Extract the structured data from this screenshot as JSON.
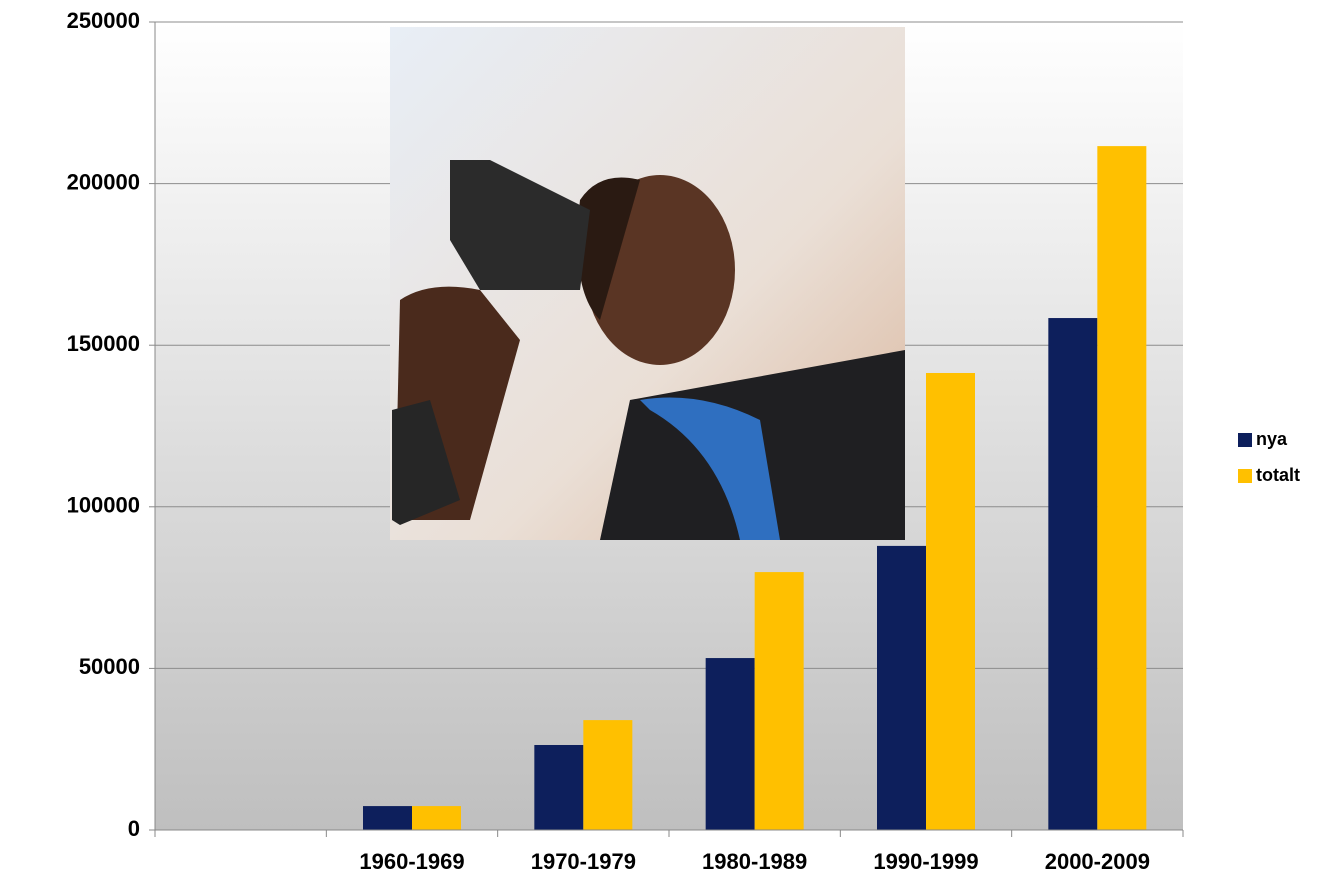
{
  "chart_data": {
    "type": "bar",
    "categories": [
      null,
      "1960-1969",
      "1970-1979",
      "1980-1989",
      "1990-1999",
      "2000-2009"
    ],
    "series": [
      {
        "name": "nya",
        "color": "#0d1f5c",
        "values": [
          null,
          7400,
          26300,
          53200,
          87900,
          158400
        ]
      },
      {
        "name": "totalt",
        "color": "#ffc000",
        "values": [
          null,
          7400,
          34000,
          79800,
          141400,
          211600
        ]
      }
    ],
    "ylim": [
      0,
      250000
    ],
    "yticks": [
      0,
      50000,
      100000,
      150000,
      200000,
      250000
    ],
    "grid": true
  }
}
